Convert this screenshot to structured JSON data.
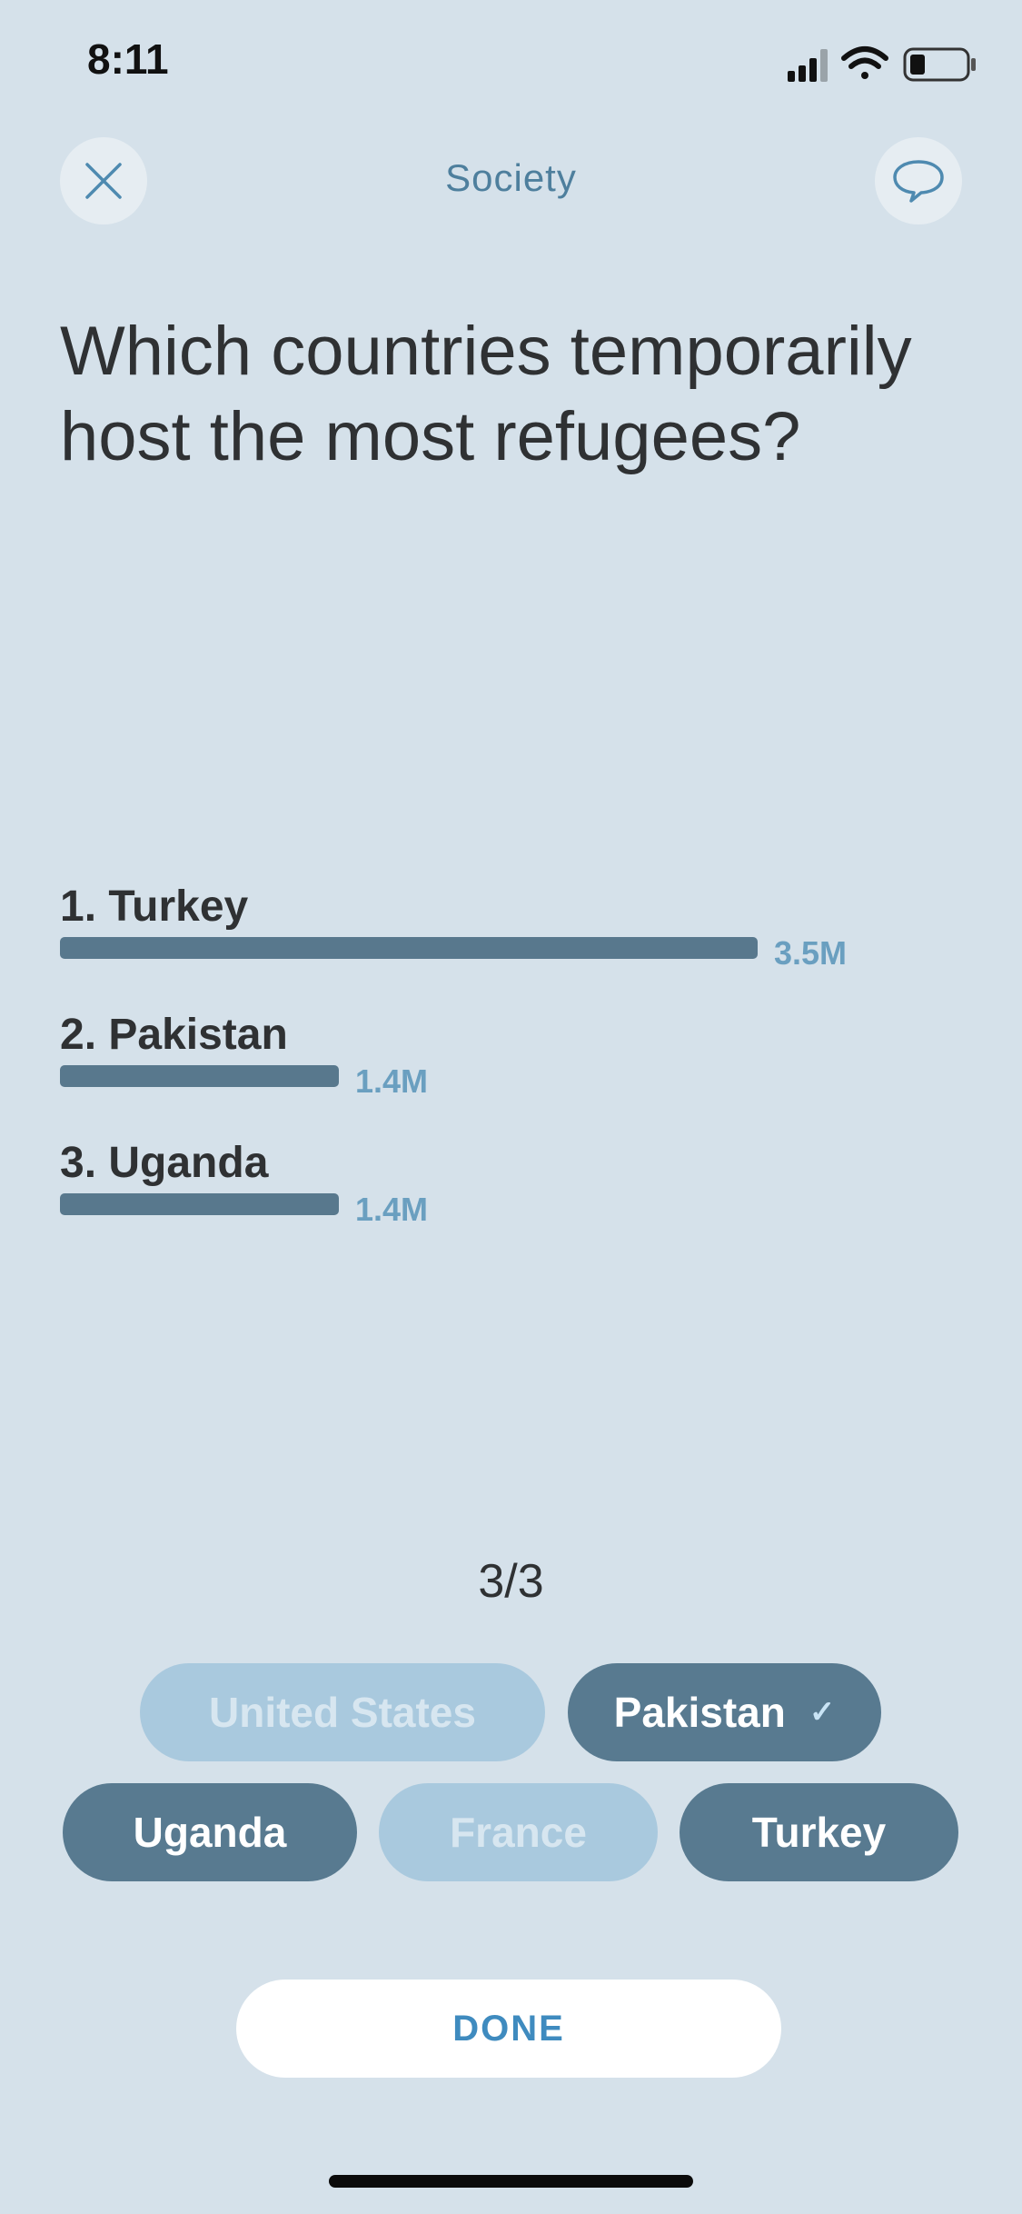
{
  "status_bar": {
    "time": "8:11"
  },
  "header": {
    "title": "Society",
    "close_icon": "close-icon",
    "chat_icon": "speech-bubble-icon"
  },
  "question": "Which countries temporarily host the most refugees?",
  "chart_data": {
    "type": "bar",
    "categories": [
      "1. Turkey",
      "2. Pakistan",
      "3. Uganda"
    ],
    "values": [
      3.5,
      1.4,
      1.4
    ],
    "value_labels": [
      "3.5M",
      "1.4M",
      "1.4M"
    ],
    "unit": "M",
    "bar_color": "#58788d",
    "label_color": "#6a9fc0"
  },
  "progress": "3/3",
  "options": [
    {
      "label": "United States",
      "state": "dimmed"
    },
    {
      "label": "Pakistan",
      "state": "selected",
      "checked": true
    },
    {
      "label": "Uganda",
      "state": "selected"
    },
    {
      "label": "France",
      "state": "dimmed"
    },
    {
      "label": "Turkey",
      "state": "selected"
    }
  ],
  "done_label": "DONE",
  "colors": {
    "background": "#d5e1ea",
    "chip_selected": "#587a90",
    "chip_dimmed": "#a9c9de",
    "accent": "#3f8bbf"
  }
}
